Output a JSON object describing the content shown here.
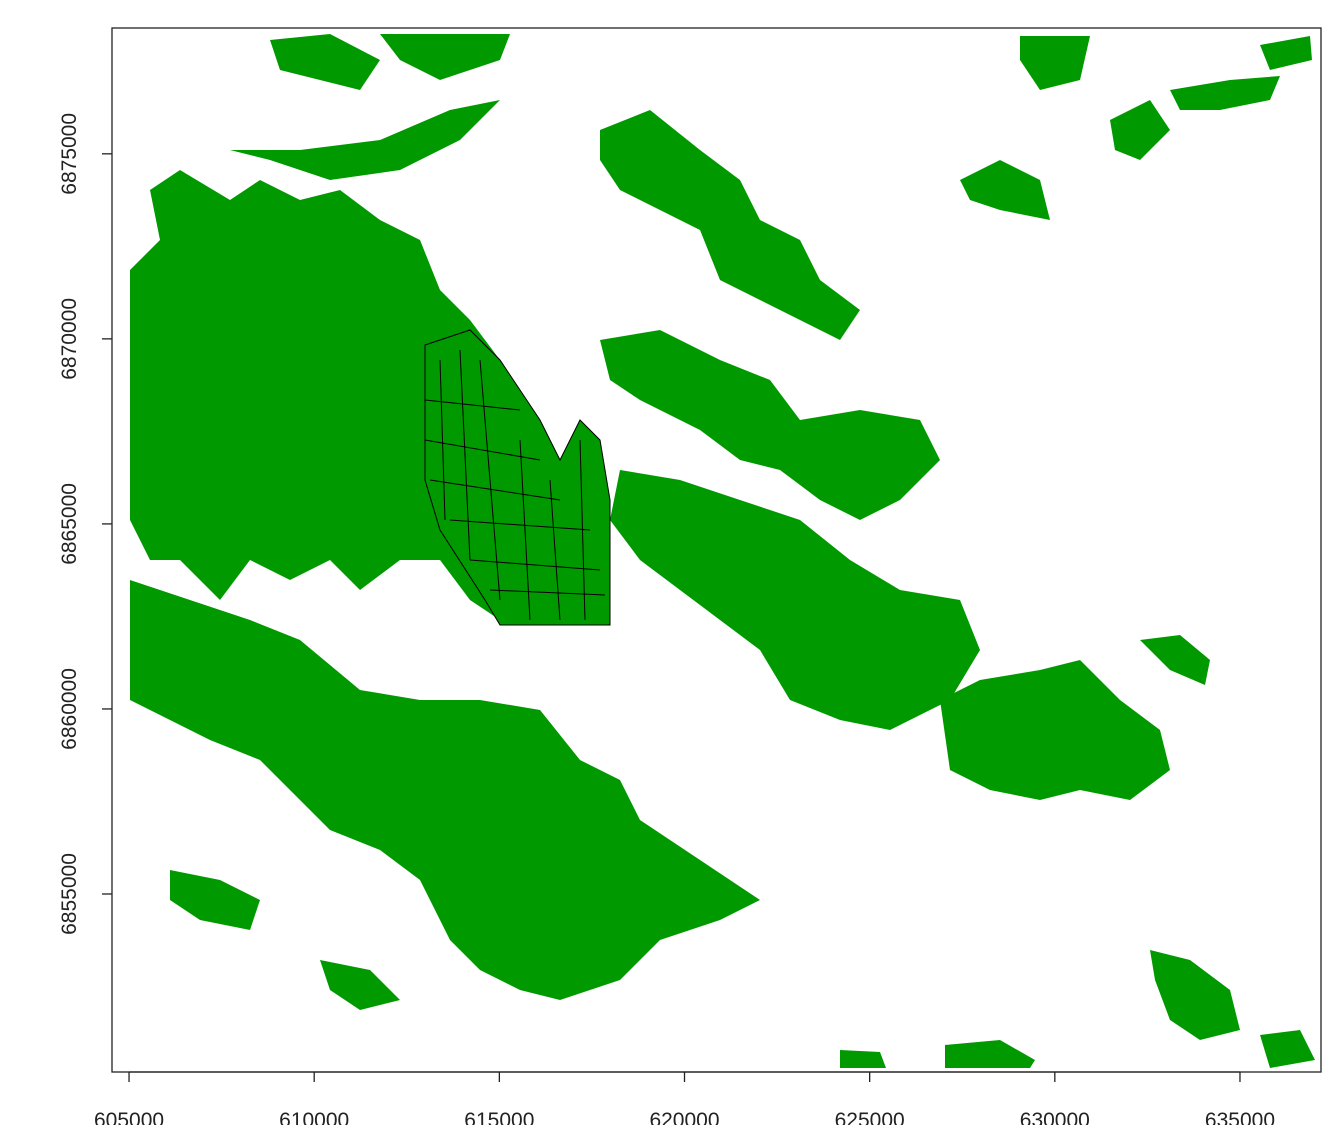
{
  "map": {
    "xlim": [
      604540,
      637215
    ],
    "ylim": [
      6850190,
      6878400
    ],
    "xticks": [
      605000,
      610000,
      615000,
      620000,
      625000,
      630000,
      635000
    ],
    "yticks": [
      6855000,
      6860000,
      6865000,
      6870000,
      6875000
    ],
    "fill_color": "#009900"
  }
}
